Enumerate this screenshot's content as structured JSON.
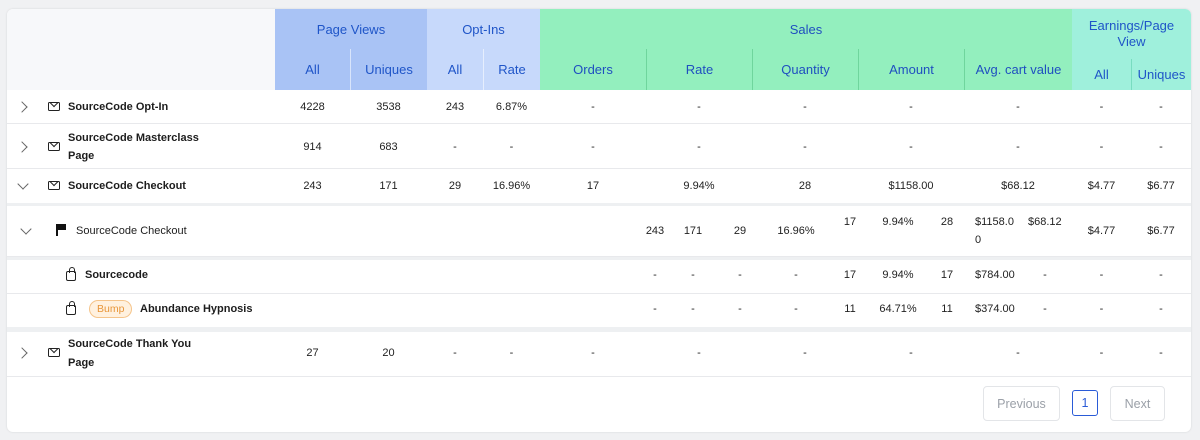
{
  "header": {
    "groups": {
      "page_views": "Page Views",
      "opt_ins": "Opt-Ins",
      "sales": "Sales",
      "earnings": "Earnings/Page View"
    },
    "sub": {
      "pv_all": "All",
      "pv_uniques": "Uniques",
      "oi_all": "All",
      "oi_rate": "Rate",
      "orders": "Orders",
      "rate": "Rate",
      "quantity": "Quantity",
      "amount": "Amount",
      "avg_cart": "Avg. cart value",
      "ep_all": "All",
      "ep_uniques": "Uniques"
    }
  },
  "rows": {
    "optin": {
      "name": "SourceCode Opt-In",
      "pv_all": "4228",
      "pv_uniq": "3538",
      "oi_all": "243",
      "oi_rate": "6.87%",
      "orders": "-",
      "rate": "-",
      "qty": "-",
      "amount": "-",
      "avg": "-",
      "ep_all": "-",
      "ep_uniq": "-"
    },
    "masterclass": {
      "name1": "SourceCode Masterclass",
      "name2": "Page",
      "pv_all": "914",
      "pv_uniq": "683",
      "oi_all": "-",
      "oi_rate": "-",
      "orders": "-",
      "rate": "-",
      "qty": "-",
      "amount": "-",
      "avg": "-",
      "ep_all": "-",
      "ep_uniq": "-"
    },
    "checkout": {
      "name": "SourceCode Checkout",
      "pv_all": "243",
      "pv_uniq": "171",
      "oi_all": "29",
      "oi_rate": "16.96%",
      "orders": "17",
      "rate": "9.94%",
      "qty": "28",
      "amount": "$1158.00",
      "avg": "$68.12",
      "ep_all": "$4.77",
      "ep_uniq": "$6.77"
    },
    "checkout_sub": {
      "name": "SourceCode Checkout",
      "pv_all": "243",
      "pv_uniq": "171",
      "oi_all": "29",
      "oi_rate": "16.96%",
      "orders": "17",
      "rate": "9.94%",
      "qty": "28",
      "amount1": "$1158.0",
      "amount2": "0",
      "avg": "$68.12",
      "ep_all": "$4.77",
      "ep_uniq": "$6.77"
    },
    "sourcecode": {
      "name": "Sourcecode",
      "pv_all": "-",
      "pv_uniq": "-",
      "oi_all": "-",
      "oi_rate": "-",
      "orders": "17",
      "rate": "9.94%",
      "qty": "17",
      "amount": "$784.00",
      "avg": "-",
      "ep_all": "-",
      "ep_uniq": "-"
    },
    "bump": {
      "badge": "Bump",
      "name": "Abundance Hypnosis",
      "pv_all": "-",
      "pv_uniq": "-",
      "oi_all": "-",
      "oi_rate": "-",
      "orders": "11",
      "rate": "64.71%",
      "qty": "11",
      "amount": "$374.00",
      "avg": "-",
      "ep_all": "-",
      "ep_uniq": "-"
    },
    "thankyou": {
      "name1": "SourceCode Thank You",
      "name2": "Page",
      "pv_all": "27",
      "pv_uniq": "20",
      "oi_all": "-",
      "oi_rate": "-",
      "orders": "-",
      "rate": "-",
      "qty": "-",
      "amount": "-",
      "avg": "-",
      "ep_all": "-",
      "ep_uniq": "-"
    }
  },
  "pagination": {
    "previous": "Previous",
    "page": "1",
    "next": "Next"
  }
}
